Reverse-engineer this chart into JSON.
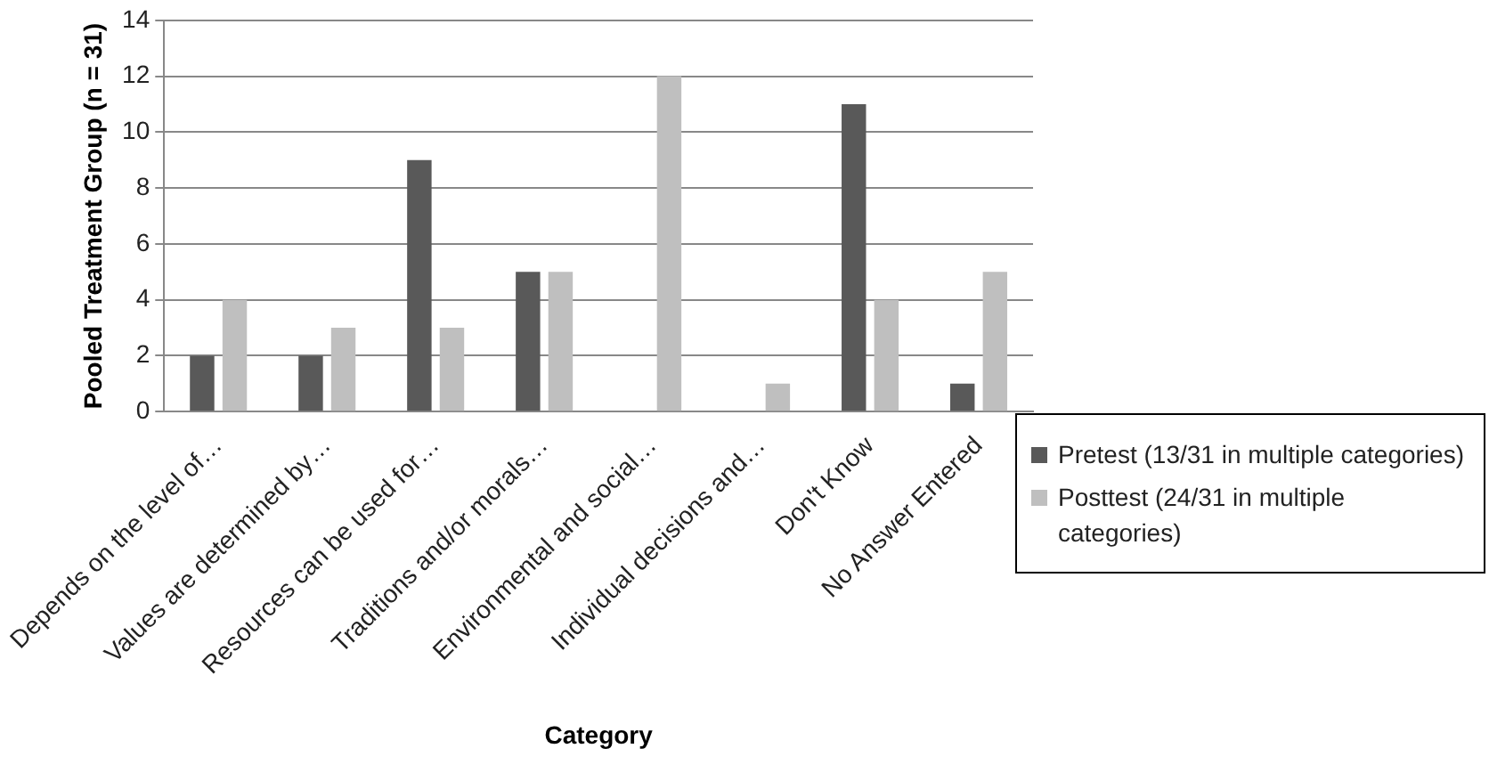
{
  "chart_data": {
    "type": "bar",
    "xlabel": "Category",
    "ylabel": "Pooled Treatment Group (n = 31)",
    "categories": [
      "Depends on the level of…",
      "Values are determined by…",
      "Resources can be used for…",
      "Traditions and/or morals…",
      "Environmental and social…",
      "Individual decisions and…",
      "Don't Know",
      "No Answer Entered"
    ],
    "series": [
      {
        "name": "Pretest (13/31 in multiple categories)",
        "color": "#595959",
        "values": [
          2,
          2,
          9,
          5,
          0,
          0,
          11,
          1
        ]
      },
      {
        "name": "Posttest (24/31 in multiple categories)",
        "color": "#bfbfbf",
        "values": [
          4,
          3,
          3,
          5,
          12,
          1,
          4,
          5
        ]
      }
    ],
    "ylim": [
      0,
      14
    ],
    "yticks": [
      0,
      2,
      4,
      6,
      8,
      10,
      12,
      14
    ],
    "grid": "y",
    "legend": "right"
  }
}
